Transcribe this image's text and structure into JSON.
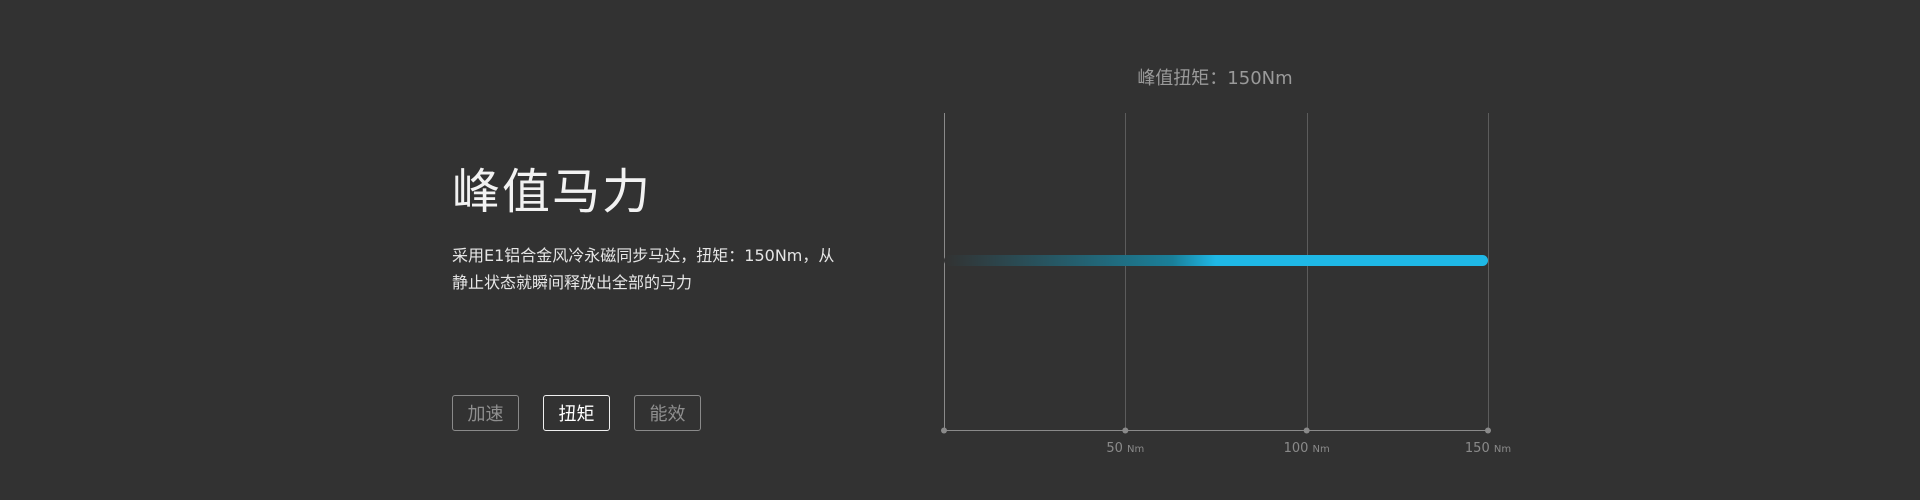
{
  "section": {
    "title": "峰值马力",
    "description_line1": "采用E1铝合金风冷永磁同步马达，扭矩：150Nm，从",
    "description_line2": "静止状态就瞬间释放出全部的马力"
  },
  "tabs": [
    {
      "label": "加速",
      "active": false
    },
    {
      "label": "扭矩",
      "active": true
    },
    {
      "label": "能效",
      "active": false
    }
  ],
  "chart_data": {
    "type": "bar",
    "title": "峰值扭矩：150Nm",
    "orientation": "horizontal",
    "xlim": [
      0,
      150
    ],
    "grid": true,
    "x_ticks": [
      {
        "value": 50,
        "label": "50",
        "unit": "Nm"
      },
      {
        "value": 100,
        "label": "100",
        "unit": "Nm"
      },
      {
        "value": 150,
        "label": "150",
        "unit": "Nm"
      }
    ],
    "values": [
      150
    ],
    "colors": {
      "bar_start": "#323232",
      "bar_end": "#1fb8e6",
      "axis": "#8a8a8a",
      "grid": "#5c5c5c"
    }
  }
}
